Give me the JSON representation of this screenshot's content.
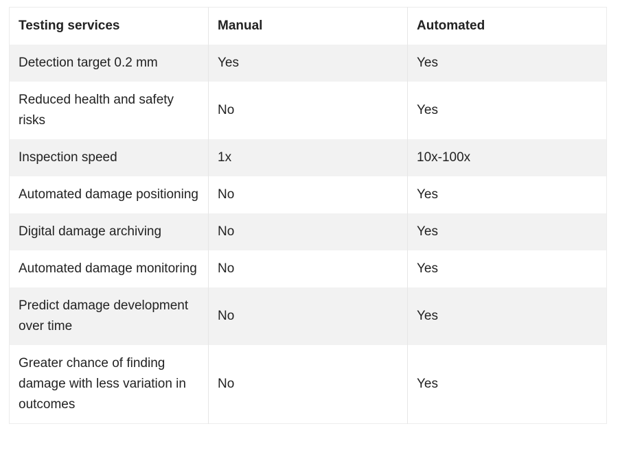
{
  "table": {
    "header": [
      "Testing services",
      "Manual",
      "Automated"
    ],
    "rows": [
      [
        "Detection target 0.2 mm",
        "Yes",
        "Yes"
      ],
      [
        "Reduced health and safety risks",
        "No",
        "Yes"
      ],
      [
        "Inspection speed",
        "1x",
        "10x-100x"
      ],
      [
        "Automated damage positioning",
        "No",
        "Yes"
      ],
      [
        "Digital damage archiving",
        "No",
        "Yes"
      ],
      [
        "Automated damage monitoring",
        "No",
        "Yes"
      ],
      [
        "Predict damage development over time",
        "No",
        "Yes"
      ],
      [
        "Greater chance of finding damage with less variation in outcomes",
        "No",
        "Yes"
      ]
    ]
  }
}
